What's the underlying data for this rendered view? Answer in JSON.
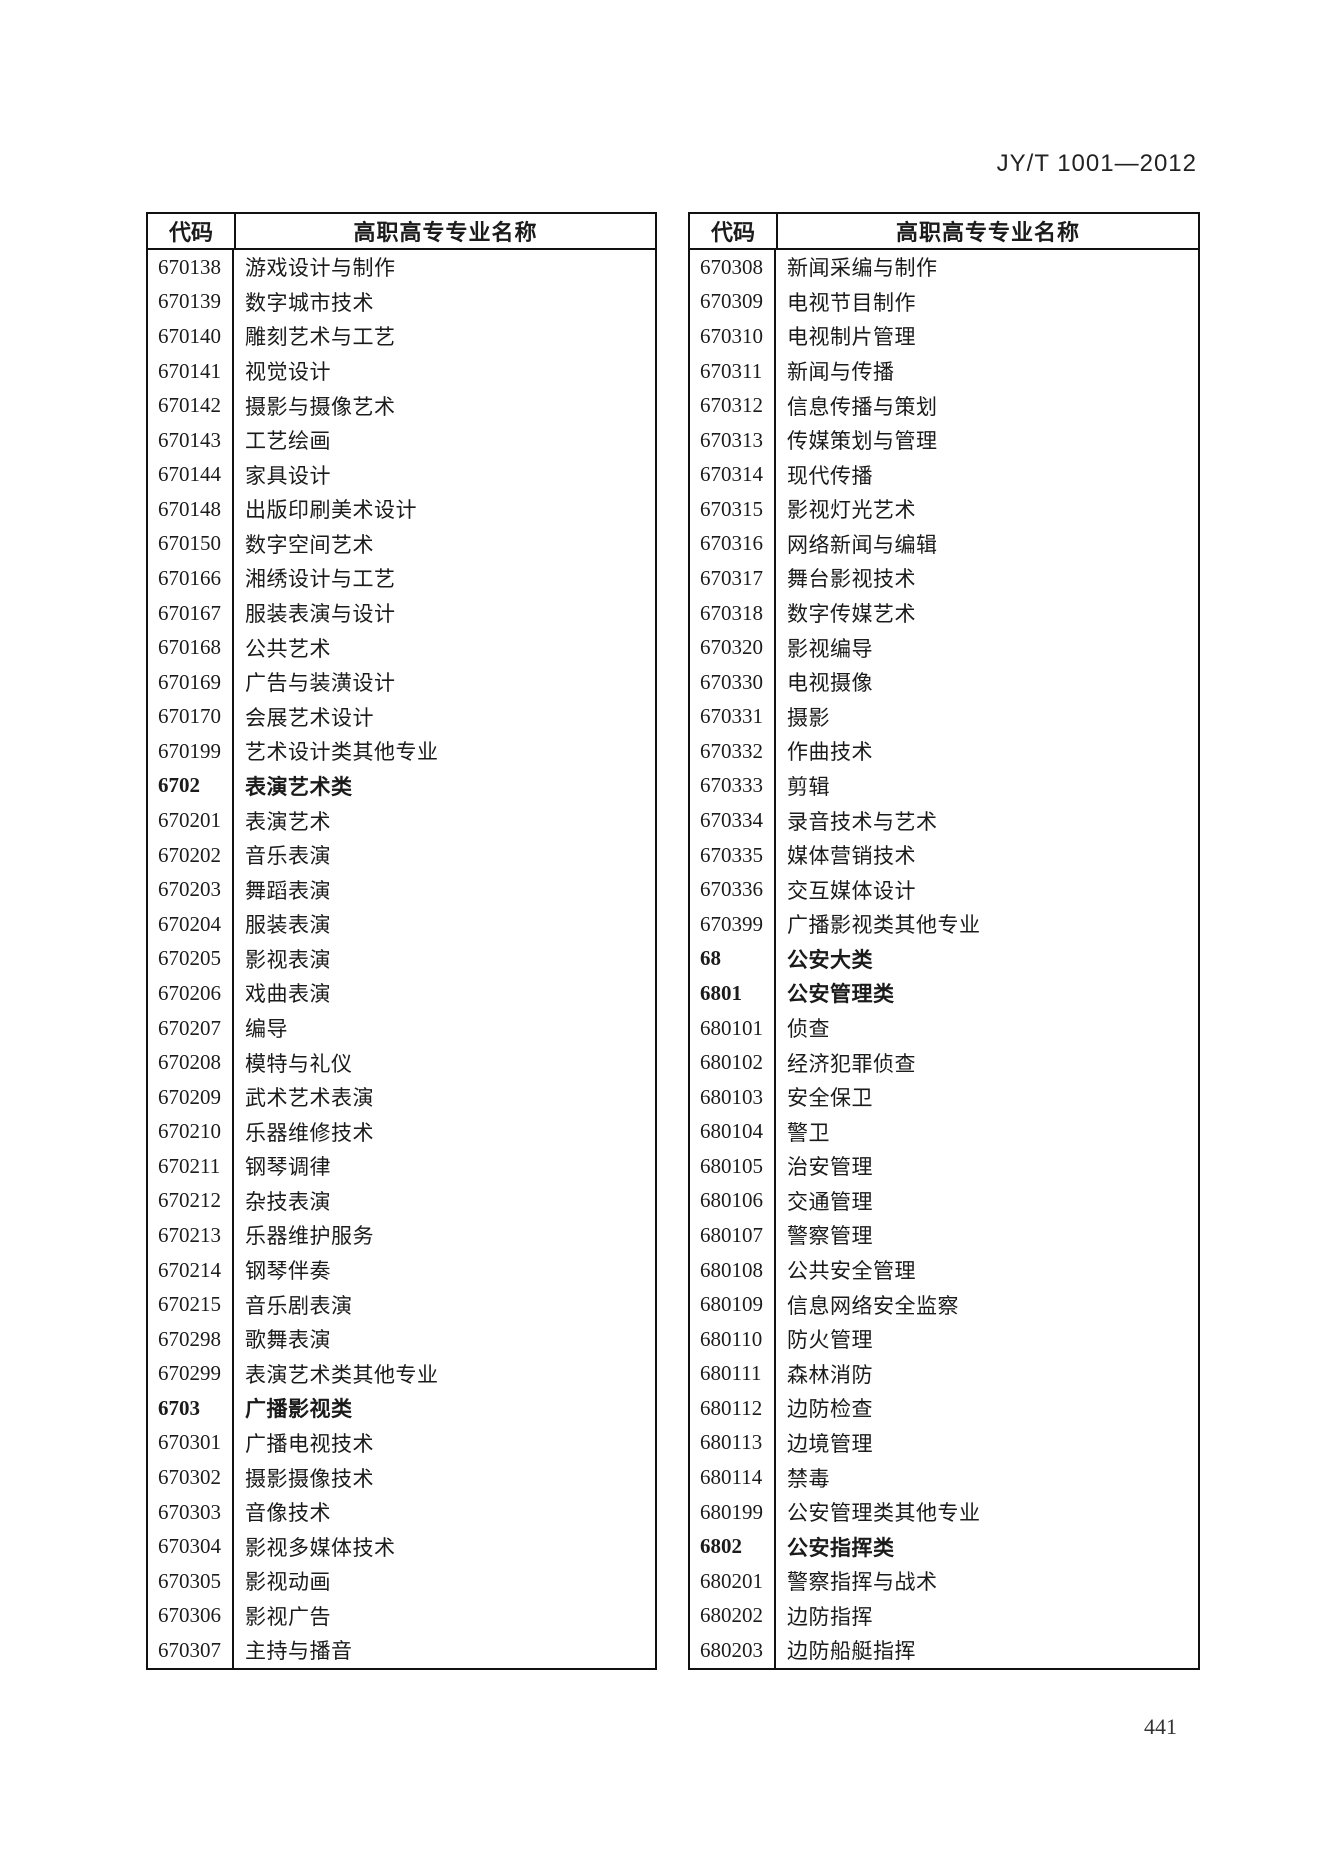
{
  "header": {
    "standard_code": "JY/T 1001—2012"
  },
  "page_number": "441",
  "tables": [
    {
      "side": "left",
      "headers": {
        "code": "代码",
        "name": "高职高专专业名称"
      },
      "rows": [
        {
          "code": "670138",
          "name": "游戏设计与制作",
          "bold": false
        },
        {
          "code": "670139",
          "name": "数字城市技术",
          "bold": false
        },
        {
          "code": "670140",
          "name": "雕刻艺术与工艺",
          "bold": false
        },
        {
          "code": "670141",
          "name": "视觉设计",
          "bold": false
        },
        {
          "code": "670142",
          "name": "摄影与摄像艺术",
          "bold": false
        },
        {
          "code": "670143",
          "name": "工艺绘画",
          "bold": false
        },
        {
          "code": "670144",
          "name": "家具设计",
          "bold": false
        },
        {
          "code": "670148",
          "name": "出版印刷美术设计",
          "bold": false
        },
        {
          "code": "670150",
          "name": "数字空间艺术",
          "bold": false
        },
        {
          "code": "670166",
          "name": "湘绣设计与工艺",
          "bold": false
        },
        {
          "code": "670167",
          "name": "服装表演与设计",
          "bold": false
        },
        {
          "code": "670168",
          "name": "公共艺术",
          "bold": false
        },
        {
          "code": "670169",
          "name": "广告与装潢设计",
          "bold": false
        },
        {
          "code": "670170",
          "name": "会展艺术设计",
          "bold": false
        },
        {
          "code": "670199",
          "name": "艺术设计类其他专业",
          "bold": false
        },
        {
          "code": "6702",
          "name": "表演艺术类",
          "bold": true
        },
        {
          "code": "670201",
          "name": "表演艺术",
          "bold": false
        },
        {
          "code": "670202",
          "name": "音乐表演",
          "bold": false
        },
        {
          "code": "670203",
          "name": "舞蹈表演",
          "bold": false
        },
        {
          "code": "670204",
          "name": "服装表演",
          "bold": false
        },
        {
          "code": "670205",
          "name": "影视表演",
          "bold": false
        },
        {
          "code": "670206",
          "name": "戏曲表演",
          "bold": false
        },
        {
          "code": "670207",
          "name": "编导",
          "bold": false
        },
        {
          "code": "670208",
          "name": "模特与礼仪",
          "bold": false
        },
        {
          "code": "670209",
          "name": "武术艺术表演",
          "bold": false
        },
        {
          "code": "670210",
          "name": "乐器维修技术",
          "bold": false
        },
        {
          "code": "670211",
          "name": "钢琴调律",
          "bold": false
        },
        {
          "code": "670212",
          "name": "杂技表演",
          "bold": false
        },
        {
          "code": "670213",
          "name": "乐器维护服务",
          "bold": false
        },
        {
          "code": "670214",
          "name": "钢琴伴奏",
          "bold": false
        },
        {
          "code": "670215",
          "name": "音乐剧表演",
          "bold": false
        },
        {
          "code": "670298",
          "name": "歌舞表演",
          "bold": false
        },
        {
          "code": "670299",
          "name": "表演艺术类其他专业",
          "bold": false
        },
        {
          "code": "6703",
          "name": "广播影视类",
          "bold": true
        },
        {
          "code": "670301",
          "name": "广播电视技术",
          "bold": false
        },
        {
          "code": "670302",
          "name": "摄影摄像技术",
          "bold": false
        },
        {
          "code": "670303",
          "name": "音像技术",
          "bold": false
        },
        {
          "code": "670304",
          "name": "影视多媒体技术",
          "bold": false
        },
        {
          "code": "670305",
          "name": "影视动画",
          "bold": false
        },
        {
          "code": "670306",
          "name": "影视广告",
          "bold": false
        },
        {
          "code": "670307",
          "name": "主持与播音",
          "bold": false
        }
      ]
    },
    {
      "side": "right",
      "headers": {
        "code": "代码",
        "name": "高职高专专业名称"
      },
      "rows": [
        {
          "code": "670308",
          "name": "新闻采编与制作",
          "bold": false
        },
        {
          "code": "670309",
          "name": "电视节目制作",
          "bold": false
        },
        {
          "code": "670310",
          "name": "电视制片管理",
          "bold": false
        },
        {
          "code": "670311",
          "name": "新闻与传播",
          "bold": false
        },
        {
          "code": "670312",
          "name": "信息传播与策划",
          "bold": false
        },
        {
          "code": "670313",
          "name": "传媒策划与管理",
          "bold": false
        },
        {
          "code": "670314",
          "name": "现代传播",
          "bold": false
        },
        {
          "code": "670315",
          "name": "影视灯光艺术",
          "bold": false
        },
        {
          "code": "670316",
          "name": "网络新闻与编辑",
          "bold": false
        },
        {
          "code": "670317",
          "name": "舞台影视技术",
          "bold": false
        },
        {
          "code": "670318",
          "name": "数字传媒艺术",
          "bold": false
        },
        {
          "code": "670320",
          "name": "影视编导",
          "bold": false
        },
        {
          "code": "670330",
          "name": "电视摄像",
          "bold": false
        },
        {
          "code": "670331",
          "name": "摄影",
          "bold": false
        },
        {
          "code": "670332",
          "name": "作曲技术",
          "bold": false
        },
        {
          "code": "670333",
          "name": "剪辑",
          "bold": false
        },
        {
          "code": "670334",
          "name": "录音技术与艺术",
          "bold": false
        },
        {
          "code": "670335",
          "name": "媒体营销技术",
          "bold": false
        },
        {
          "code": "670336",
          "name": "交互媒体设计",
          "bold": false
        },
        {
          "code": "670399",
          "name": "广播影视类其他专业",
          "bold": false
        },
        {
          "code": "68",
          "name": "公安大类",
          "bold": true
        },
        {
          "code": "6801",
          "name": "公安管理类",
          "bold": true
        },
        {
          "code": "680101",
          "name": "侦查",
          "bold": false
        },
        {
          "code": "680102",
          "name": "经济犯罪侦查",
          "bold": false
        },
        {
          "code": "680103",
          "name": "安全保卫",
          "bold": false
        },
        {
          "code": "680104",
          "name": "警卫",
          "bold": false
        },
        {
          "code": "680105",
          "name": "治安管理",
          "bold": false
        },
        {
          "code": "680106",
          "name": "交通管理",
          "bold": false
        },
        {
          "code": "680107",
          "name": "警察管理",
          "bold": false
        },
        {
          "code": "680108",
          "name": "公共安全管理",
          "bold": false
        },
        {
          "code": "680109",
          "name": "信息网络安全监察",
          "bold": false
        },
        {
          "code": "680110",
          "name": "防火管理",
          "bold": false
        },
        {
          "code": "680111",
          "name": "森林消防",
          "bold": false
        },
        {
          "code": "680112",
          "name": "边防检查",
          "bold": false
        },
        {
          "code": "680113",
          "name": "边境管理",
          "bold": false
        },
        {
          "code": "680114",
          "name": "禁毒",
          "bold": false
        },
        {
          "code": "680199",
          "name": "公安管理类其他专业",
          "bold": false
        },
        {
          "code": "6802",
          "name": "公安指挥类",
          "bold": true
        },
        {
          "code": "680201",
          "name": "警察指挥与战术",
          "bold": false
        },
        {
          "code": "680202",
          "name": "边防指挥",
          "bold": false
        },
        {
          "code": "680203",
          "name": "边防船艇指挥",
          "bold": false
        }
      ]
    }
  ]
}
